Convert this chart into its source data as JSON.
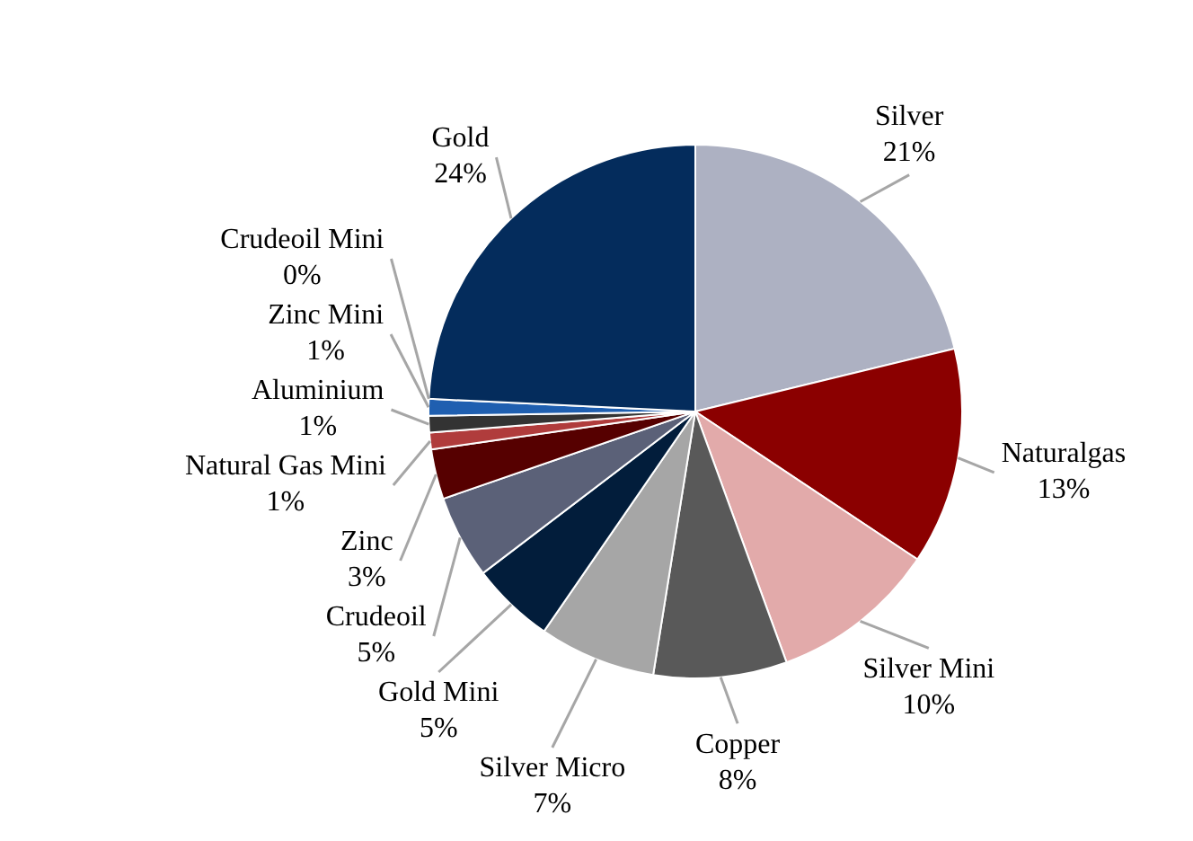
{
  "chart_data": {
    "type": "pie",
    "categories": [
      "Silver",
      "Naturalgas",
      "Silver Mini",
      "Copper",
      "Silver Micro",
      "Gold Mini",
      "Crudeoil",
      "Zinc",
      "Natural Gas Mini",
      "Aluminium",
      "Zinc Mini",
      "Crudeoil Mini",
      "Gold"
    ],
    "values": [
      21,
      13,
      10,
      8,
      7,
      5,
      5,
      3,
      1,
      1,
      1,
      0,
      24
    ],
    "value_labels": [
      "21%",
      "13%",
      "10%",
      "8%",
      "7%",
      "5%",
      "5%",
      "3%",
      "1%",
      "1%",
      "1%",
      "0%",
      "24%"
    ],
    "colors": [
      "#adb1c2",
      "#8b0000",
      "#e2aaaa",
      "#595959",
      "#a6a6a6",
      "#021d3b",
      "#5b6178",
      "#560000",
      "#b03c3c",
      "#333333",
      "#1f5fb0",
      "#e01010",
      "#042c5c"
    ],
    "legend": false
  }
}
